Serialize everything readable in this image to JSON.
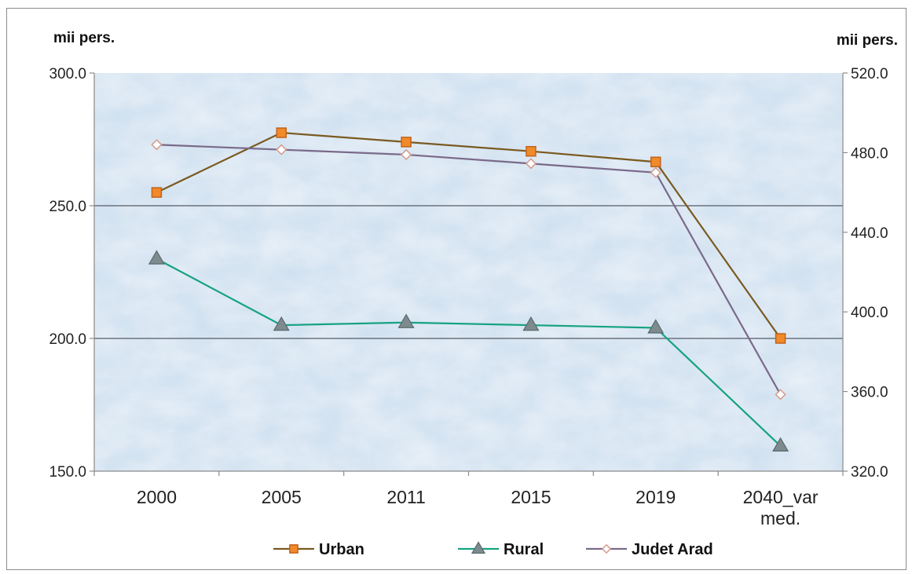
{
  "chart_data": {
    "type": "line",
    "title": "",
    "y_left_label": "mii pers.",
    "y_right_label": "mii pers.",
    "categories": [
      "2000",
      "2005",
      "2011",
      "2015",
      "2019",
      "2040_var med."
    ],
    "category_lines": [
      [
        "2000"
      ],
      [
        "2005"
      ],
      [
        "2011"
      ],
      [
        "2015"
      ],
      [
        "2019"
      ],
      [
        "2040_var",
        "med."
      ]
    ],
    "y_left": {
      "min": 150,
      "max": 300,
      "ticks": [
        "150.0",
        "200.0",
        "250.0",
        "300.0"
      ]
    },
    "y_right": {
      "min": 320,
      "max": 520,
      "ticks": [
        "320.0",
        "360.0",
        "400.0",
        "440.0",
        "480.0",
        "520.0"
      ]
    },
    "gridlines_left": [
      200,
      250
    ],
    "legend_position": "bottom",
    "series": [
      {
        "name": "Urban",
        "axis": "left",
        "marker": "square",
        "color": "#7a5a20",
        "marker_fill": "#f08a2a",
        "marker_stroke": "#c4621a",
        "values": [
          255.0,
          277.5,
          274.0,
          270.5,
          266.5,
          200.0
        ]
      },
      {
        "name": "Rural",
        "axis": "left",
        "marker": "triangle",
        "color": "#17a382",
        "marker_fill": "#7d8b8f",
        "marker_stroke": "#5a6a6e",
        "values": [
          230.0,
          205.0,
          206.0,
          205.0,
          204.0,
          159.5
        ]
      },
      {
        "name": "Judet Arad",
        "axis": "right",
        "marker": "diamond",
        "color": "#7a6a8a",
        "marker_fill": "#ffffff",
        "marker_stroke": "#d29a8c",
        "values": [
          484.0,
          481.5,
          479.0,
          474.5,
          470.0,
          358.5
        ]
      }
    ],
    "plot_background": "#cfe0f0"
  }
}
